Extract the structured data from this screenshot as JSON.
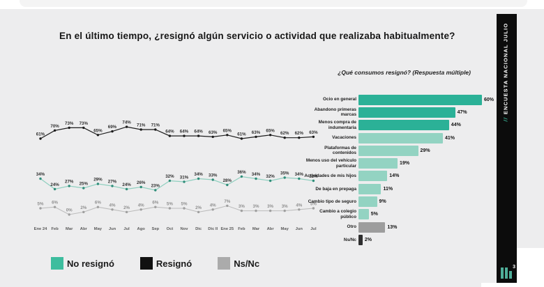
{
  "slide": {
    "title": "En el último tiempo, ¿resignó algún servicio o actividad que realizaba habitualmente?"
  },
  "sidebar": {
    "vertical_label": "ENCUESTA NACIONAL JULIO",
    "slash_icon": "//",
    "page_number": "3"
  },
  "legend": {
    "items": [
      {
        "label": "No resignó",
        "color": "#3dbd9e"
      },
      {
        "label": "Resignó",
        "color": "#111111"
      },
      {
        "label": "Ns/Nc",
        "color": "#ababab"
      }
    ]
  },
  "chart_data": [
    {
      "type": "line",
      "title": "",
      "categories": [
        "Ene 24",
        "Feb",
        "Mar",
        "Abr",
        "May",
        "Jun",
        "Jul",
        "Ago",
        "Sep",
        "Oct",
        "Nov",
        "Dic",
        "Dic II",
        "Ene 25",
        "Feb",
        "Mar",
        "Abr",
        "May",
        "Jun",
        "Jul"
      ],
      "series": [
        {
          "name": "Resignó",
          "color": "#1c1c1c",
          "dot_color": "#1c1c1c",
          "label_color": "#2e2e2e",
          "values": [
            61,
            70,
            73,
            73,
            65,
            69,
            74,
            71,
            71,
            64,
            64,
            64,
            63,
            65,
            61,
            63,
            65,
            62,
            62,
            63
          ]
        },
        {
          "name": "No resignó",
          "color": "#8fcfbf",
          "dot_color": "#2f8d79",
          "label_color": "#2e2e2e",
          "values": [
            34,
            24,
            27,
            25,
            29,
            27,
            24,
            26,
            23,
            32,
            31,
            34,
            33,
            28,
            36,
            34,
            32,
            35,
            34,
            32
          ]
        },
        {
          "name": "Ns/Nc",
          "color": "#bcbcbc",
          "dot_color": "#9f9f9f",
          "label_color": "#8f8f8f",
          "values": [
            5,
            6,
            0,
            2,
            6,
            4,
            2,
            4,
            6,
            5,
            5,
            2,
            4,
            7,
            3,
            3,
            3,
            3,
            4,
            5
          ]
        }
      ],
      "value_suffix": "%",
      "grid": false,
      "legend_position": "bottom"
    },
    {
      "type": "bar",
      "orientation": "horizontal",
      "title": "¿Qué consumos resignó? (Respuesta múltiple)",
      "categories": [
        "Ocio en general",
        "Abandono primeras marcas",
        "Menos compra de indumentaria",
        "Vacaciones",
        "Plataformas de contenidos",
        "Menos uso del vehículo particular",
        "Actividades de mis hijos",
        "De baja en prepaga",
        "Cambio tipo de seguro",
        "Cambio a colegio público",
        "Otro",
        "Ns/Nc"
      ],
      "values": [
        60,
        47,
        44,
        41,
        29,
        19,
        14,
        11,
        9,
        5,
        13,
        2
      ],
      "bar_colors": [
        "#2bb197",
        "#2bb197",
        "#2bb197",
        "#93d3c2",
        "#93d3c2",
        "#93d3c2",
        "#93d3c2",
        "#93d3c2",
        "#93d3c2",
        "#93d3c2",
        "#9d9d9d",
        "#2f2f2f"
      ],
      "value_suffix": "%",
      "xlim": [
        0,
        65
      ]
    }
  ]
}
